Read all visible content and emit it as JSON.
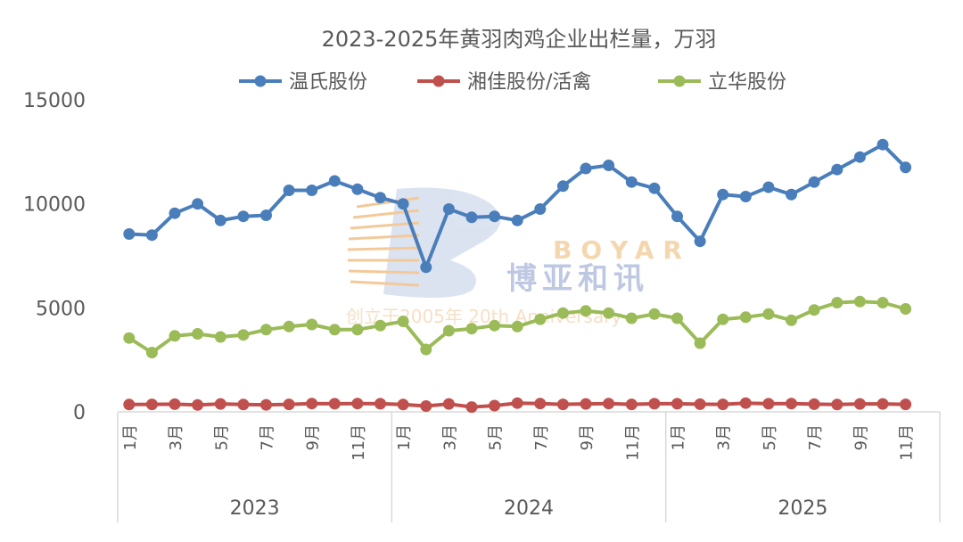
{
  "chart_data": {
    "type": "line",
    "title": "2023-2025年黄羽肉鸡企业出栏量，万羽",
    "ylim": [
      0,
      15000
    ],
    "yticks": [
      0,
      5000,
      10000,
      15000
    ],
    "grid": false,
    "legend_position": "top",
    "month_ticks": [
      "1月",
      "",
      "3月",
      "",
      "5月",
      "",
      "7月",
      "",
      "9月",
      "",
      "11月",
      ""
    ],
    "years": [
      "2023",
      "2024",
      "2025"
    ],
    "months_per_year": [
      12,
      12,
      11
    ],
    "series": [
      {
        "name": "温氏股份",
        "color": "#4a7ebb",
        "values": [
          8550,
          8500,
          9550,
          10000,
          9200,
          9400,
          9450,
          10650,
          10650,
          11100,
          10700,
          10300,
          10000,
          6950,
          9750,
          9350,
          9400,
          9200,
          9750,
          10850,
          11700,
          11850,
          11050,
          10750,
          9400,
          8200,
          10450,
          10350,
          10800,
          10450,
          11050,
          11650,
          12250,
          12850,
          11750
        ]
      },
      {
        "name": "湘佳股份/活禽",
        "color": "#c0504d",
        "values": [
          350,
          360,
          370,
          330,
          380,
          350,
          340,
          360,
          400,
          390,
          400,
          390,
          350,
          280,
          380,
          230,
          300,
          420,
          400,
          360,
          380,
          400,
          360,
          390,
          390,
          370,
          360,
          420,
          390,
          400,
          370,
          350,
          380,
          380,
          360
        ]
      },
      {
        "name": "立华股份",
        "color": "#9bbb59",
        "values": [
          3550,
          2850,
          3650,
          3750,
          3600,
          3700,
          3950,
          4100,
          4200,
          3950,
          3950,
          4150,
          4350,
          3000,
          3900,
          4000,
          4150,
          4100,
          4450,
          4750,
          4850,
          4750,
          4500,
          4700,
          4500,
          3300,
          4450,
          4550,
          4700,
          4400,
          4900,
          5250,
          5300,
          5250,
          4950
        ]
      }
    ]
  },
  "watermark": {
    "brand_en": "BOYAR",
    "brand_cn": "博亚和讯",
    "tagline": "创立于2005年 20th Anniversary"
  }
}
